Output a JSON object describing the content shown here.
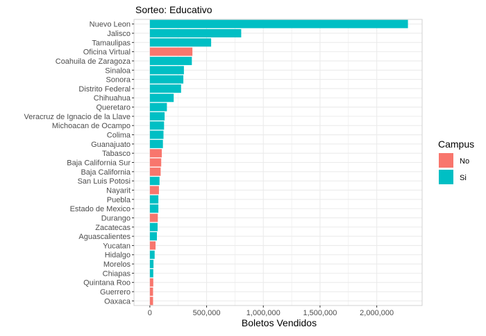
{
  "chart_data": {
    "type": "bar",
    "orientation": "horizontal",
    "title": "Sorteo: Educativo",
    "xlabel": "Boletos Vendidos",
    "ylabel": "",
    "xlim": [
      -140000,
      2400000
    ],
    "x_ticks": [
      0,
      500000,
      1000000,
      1500000,
      2000000
    ],
    "x_tick_labels": [
      "0",
      "500,000",
      "1,000,000",
      "1,500,000",
      "2,000,000"
    ],
    "grid": true,
    "legend": {
      "title": "Campus",
      "position": "right",
      "entries": [
        {
          "label": "No",
          "color": "#F8766D"
        },
        {
          "label": "Si",
          "color": "#00BFC4"
        }
      ]
    },
    "categories": [
      "Nuevo Leon",
      "Jalisco",
      "Tamaulipas",
      "Oficina Virtual",
      "Coahuila de Zaragoza",
      "Sinaloa",
      "Sonora",
      "Distrito Federal",
      "Chihuahua",
      "Queretaro",
      "Veracruz de Ignacio de la Llave",
      "Michoacan de Ocampo",
      "Colima",
      "Guanajuato",
      "Tabasco",
      "Baja California Sur",
      "Baja California",
      "San Luis Potosi",
      "Nayarit",
      "Puebla",
      "Estado de Mexico",
      "Durango",
      "Zacatecas",
      "Aguascalientes",
      "Yucatan",
      "Hidalgo",
      "Morelos",
      "Chiapas",
      "Quintana Roo",
      "Guerrero",
      "Oaxaca"
    ],
    "values": [
      2275000,
      805000,
      540000,
      375000,
      370000,
      300000,
      295000,
      275000,
      210000,
      150000,
      130000,
      125000,
      120000,
      115000,
      105000,
      100000,
      95000,
      85000,
      80000,
      75000,
      75000,
      70000,
      68000,
      62000,
      50000,
      42000,
      32000,
      30000,
      30000,
      28000,
      28000
    ],
    "campus": [
      "Si",
      "Si",
      "Si",
      "No",
      "Si",
      "Si",
      "Si",
      "Si",
      "Si",
      "Si",
      "Si",
      "Si",
      "Si",
      "Si",
      "No",
      "No",
      "No",
      "Si",
      "No",
      "Si",
      "Si",
      "No",
      "Si",
      "Si",
      "No",
      "Si",
      "Si",
      "Si",
      "No",
      "No",
      "No"
    ],
    "colors": {
      "No": "#F8766D",
      "Si": "#00BFC4",
      "grid": "#EBEBEB",
      "panel_border": "#D0D0D0"
    }
  }
}
